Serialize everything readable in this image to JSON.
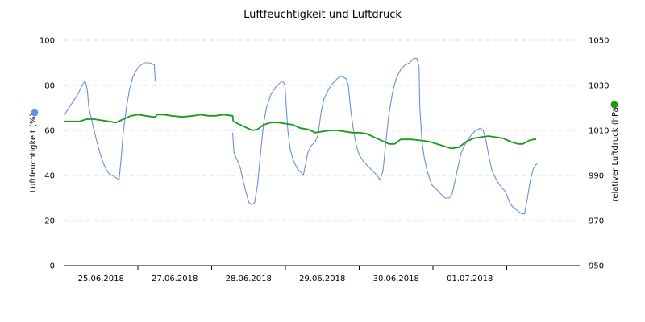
{
  "chart_data": {
    "type": "line",
    "title": "Luftfeuchtigkeit und Luftdruck",
    "x_tick_labels": [
      "25.06.2018",
      "27.06.2018",
      "28.06.2018",
      "29.06.2018",
      "30.06.2018",
      "01.07.2018"
    ],
    "ylabel_left": "Luftfeuchtigkeit (%)",
    "ylabel_right": "relativer Luftdruck (hPa)",
    "ylim_left": [
      0,
      100
    ],
    "ylim_right": [
      950,
      1050
    ],
    "yticks_left": [
      "0",
      "20",
      "40",
      "60",
      "80",
      "100"
    ],
    "yticks_right": [
      "950",
      "970",
      "990",
      "1010",
      "1030",
      "1050"
    ],
    "grid": "horizontal dashed",
    "legend": [
      {
        "name": "Luftfeuchtigkeit (%)",
        "color": "#6a8fe0",
        "placement": "left"
      },
      {
        "name": "relativer Luftdruck (hPa)",
        "color": "#1a9a1a",
        "placement": "right"
      }
    ],
    "x_index_range": [
      0,
      700
    ],
    "series": [
      {
        "name": "Luftfeuchtigkeit (%)",
        "axis": "left",
        "color": "#6a8fe0",
        "segments": [
          [
            [
              0,
              67
            ],
            [
              6,
              70
            ],
            [
              12,
              73
            ],
            [
              18,
              76
            ],
            [
              24,
              80
            ],
            [
              28,
              82
            ],
            [
              31,
              78
            ],
            [
              33,
              70
            ],
            [
              36,
              66
            ],
            [
              40,
              60
            ],
            [
              44,
              55
            ],
            [
              48,
              50
            ],
            [
              52,
              46
            ],
            [
              56,
              43
            ],
            [
              60,
              41
            ],
            [
              65,
              40
            ],
            [
              70,
              39
            ],
            [
              74,
              38
            ],
            [
              77,
              48
            ],
            [
              80,
              60
            ],
            [
              84,
              70
            ],
            [
              88,
              78
            ],
            [
              93,
              84
            ],
            [
              100,
              88
            ],
            [
              108,
              90
            ],
            [
              116,
              90
            ],
            [
              122,
              89
            ],
            [
              123,
              82
            ]
          ],
          [
            [
              228,
              59
            ],
            [
              230,
              50
            ],
            [
              234,
              47
            ],
            [
              238,
              44
            ],
            [
              242,
              38
            ],
            [
              246,
              33
            ],
            [
              250,
              28
            ],
            [
              254,
              27
            ],
            [
              258,
              28
            ],
            [
              262,
              36
            ],
            [
              266,
              50
            ],
            [
              270,
              63
            ],
            [
              274,
              70
            ],
            [
              280,
              76
            ],
            [
              286,
              79
            ],
            [
              292,
              81
            ],
            [
              296,
              82
            ],
            [
              299,
              80
            ],
            [
              301,
              70
            ],
            [
              303,
              60
            ],
            [
              306,
              52
            ],
            [
              310,
              47
            ],
            [
              316,
              43
            ],
            [
              322,
              41
            ],
            [
              324,
              40
            ],
            [
              327,
              45
            ],
            [
              330,
              50
            ],
            [
              334,
              53
            ],
            [
              340,
              55
            ],
            [
              344,
              58
            ],
            [
              348,
              68
            ],
            [
              352,
              74
            ],
            [
              358,
              78
            ],
            [
              364,
              81
            ],
            [
              370,
              83
            ],
            [
              376,
              84
            ],
            [
              382,
              83
            ],
            [
              385,
              80
            ],
            [
              388,
              70
            ],
            [
              392,
              60
            ],
            [
              396,
              53
            ],
            [
              400,
              49
            ],
            [
              406,
              46
            ],
            [
              412,
              44
            ],
            [
              418,
              42
            ],
            [
              424,
              40
            ],
            [
              428,
              38
            ],
            [
              432,
              42
            ],
            [
              436,
              55
            ],
            [
              440,
              67
            ],
            [
              445,
              77
            ],
            [
              450,
              83
            ],
            [
              456,
              87
            ],
            [
              462,
              89
            ],
            [
              468,
              90
            ],
            [
              474,
              92
            ],
            [
              478,
              92
            ],
            [
              481,
              88
            ],
            [
              482,
              70
            ],
            [
              485,
              55
            ],
            [
              488,
              48
            ],
            [
              492,
              42
            ],
            [
              498,
              36
            ],
            [
              504,
              34
            ],
            [
              510,
              32
            ],
            [
              516,
              30
            ],
            [
              522,
              30
            ],
            [
              526,
              32
            ],
            [
              530,
              38
            ],
            [
              534,
              44
            ],
            [
              538,
              50
            ],
            [
              542,
              53
            ],
            [
              546,
              55
            ],
            [
              552,
              58
            ],
            [
              558,
              60
            ],
            [
              564,
              61
            ],
            [
              568,
              60
            ],
            [
              572,
              55
            ],
            [
              576,
              48
            ],
            [
              580,
              42
            ],
            [
              586,
              38
            ],
            [
              592,
              35
            ],
            [
              598,
              33
            ],
            [
              604,
              28
            ],
            [
              608,
              26
            ],
            [
              612,
              25
            ],
            [
              616,
              24
            ],
            [
              620,
              23
            ],
            [
              624,
              23
            ],
            [
              628,
              30
            ],
            [
              632,
              38
            ],
            [
              636,
              43
            ],
            [
              640,
              45
            ],
            [
              642,
              45
            ]
          ]
        ]
      },
      {
        "name": "relativer Luftdruck (hPa)",
        "axis": "right",
        "color": "#1a9a1a",
        "segments": [
          [
            [
              0,
              1014
            ],
            [
              10,
              1014
            ],
            [
              20,
              1014
            ],
            [
              30,
              1015
            ],
            [
              40,
              1015
            ],
            [
              50,
              1014.5
            ],
            [
              60,
              1014
            ],
            [
              70,
              1013.5
            ],
            [
              80,
              1015
            ],
            [
              90,
              1016.5
            ],
            [
              100,
              1017
            ],
            [
              110,
              1016.5
            ],
            [
              120,
              1016
            ],
            [
              124,
              1016
            ],
            [
              125,
              1017
            ],
            [
              135,
              1017
            ],
            [
              145,
              1016.5
            ],
            [
              160,
              1016
            ],
            [
              175,
              1016.5
            ],
            [
              185,
              1017
            ],
            [
              195,
              1016.5
            ],
            [
              205,
              1016.5
            ],
            [
              215,
              1017
            ],
            [
              228,
              1016.5
            ],
            [
              229,
              1014
            ],
            [
              235,
              1013
            ],
            [
              245,
              1011.5
            ],
            [
              255,
              1010
            ],
            [
              262,
              1010.5
            ],
            [
              270,
              1012.5
            ],
            [
              280,
              1013.5
            ],
            [
              290,
              1013.5
            ],
            [
              300,
              1013
            ],
            [
              310,
              1012.5
            ],
            [
              320,
              1011
            ],
            [
              330,
              1010.5
            ],
            [
              340,
              1009
            ],
            [
              350,
              1009.5
            ],
            [
              360,
              1010
            ],
            [
              370,
              1010
            ],
            [
              380,
              1009.5
            ],
            [
              390,
              1009
            ],
            [
              400,
              1009
            ],
            [
              410,
              1008.5
            ],
            [
              420,
              1007
            ],
            [
              430,
              1005.5
            ],
            [
              440,
              1004
            ],
            [
              448,
              1004
            ],
            [
              456,
              1006
            ],
            [
              470,
              1006
            ],
            [
              485,
              1005.5
            ],
            [
              495,
              1005
            ],
            [
              505,
              1004
            ],
            [
              515,
              1003
            ],
            [
              525,
              1002
            ],
            [
              535,
              1002.5
            ],
            [
              545,
              1005
            ],
            [
              555,
              1006.5
            ],
            [
              565,
              1007
            ],
            [
              575,
              1007.5
            ],
            [
              585,
              1007
            ],
            [
              595,
              1006.5
            ],
            [
              605,
              1005
            ],
            [
              615,
              1004
            ],
            [
              622,
              1004
            ],
            [
              630,
              1005.5
            ],
            [
              636,
              1006
            ],
            [
              640,
              1006
            ]
          ]
        ]
      }
    ]
  }
}
